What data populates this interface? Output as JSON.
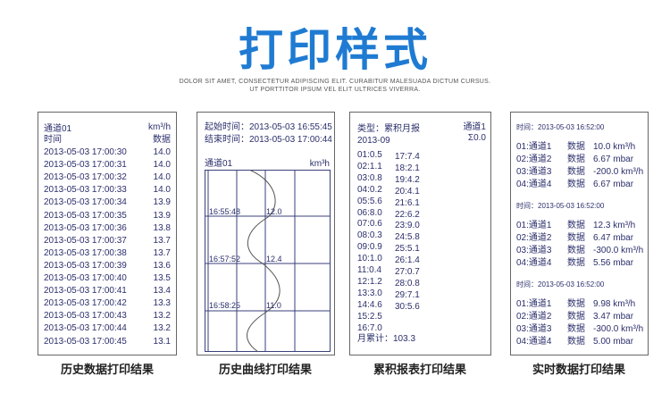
{
  "header": {
    "title": "打印样式",
    "subtitle_line1": "DOLOR SIT AMET, CONSECTETUR ADIPISCING ELIT. CURABITUR MALESUADA DICTUM CURSUS.",
    "subtitle_line2": "UT PORTTITOR IPSUM VEL ELIT ULTRICES VIVERRA."
  },
  "history": {
    "channel": "通道01",
    "unit": "km³/h",
    "time_label": "时间",
    "data_label": "数据",
    "rows": [
      [
        "2013-05-03  17:00:30",
        "14.0"
      ],
      [
        "2013-05-03  17:00:31",
        "14.0"
      ],
      [
        "2013-05-03  17:00:32",
        "14.0"
      ],
      [
        "2013-05-03  17:00:33",
        "14.0"
      ],
      [
        "2013-05-03  17:00:34",
        "13.9"
      ],
      [
        "2013-05-03  17:00:35",
        "13.9"
      ],
      [
        "2013-05-03  17:00:36",
        "13.8"
      ],
      [
        "2013-05-03  17:00:37",
        "13.7"
      ],
      [
        "2013-05-03  17:00:38",
        "13.7"
      ],
      [
        "2013-05-03  17:00:39",
        "13.6"
      ],
      [
        "2013-05-03  17:00:40",
        "13.5"
      ],
      [
        "2013-05-03  17:00:41",
        "13.4"
      ],
      [
        "2013-05-03  17:00:42",
        "13.3"
      ],
      [
        "2013-05-03  17:00:43",
        "13.2"
      ],
      [
        "2013-05-03  17:00:44",
        "13.2"
      ],
      [
        "2013-05-03  17:00:45",
        "13.1"
      ]
    ],
    "caption": "历史数据打印结果"
  },
  "curve": {
    "start": "起始时间：2013-05-03  16:55:45",
    "end": "结束时间：2013-05-03  17:00:44",
    "channel": "通道01",
    "unit": "km³h",
    "marks": [
      {
        "time": "16:55:48",
        "value": "12.0"
      },
      {
        "time": "16:57:52",
        "value": "12.4"
      },
      {
        "time": "16:58:25",
        "value": "11.0"
      }
    ],
    "caption": "历史曲线打印结果"
  },
  "cumulative": {
    "type": "类型：累积月报",
    "month": "2013-09",
    "channel": "通道1",
    "sum": "Σ0.0",
    "col1": [
      "01:0.5",
      "02:1.1",
      "03:0.8",
      "04:0.2",
      "05:5.6",
      "06:8.0",
      "07:0.6",
      "08:0.3",
      "09:0.9",
      "10:1.0",
      "11:0.4",
      "12:1.2",
      "13:3.0",
      "14:4.6",
      "15:2.5",
      "16:7.0"
    ],
    "col2": [
      "17:7.4",
      "18:2.1",
      "19:4.2",
      "20:4.1",
      "21:6.1",
      "22:6.2",
      "23:9.0",
      "24:5.8",
      "25:5.1",
      "26:1.4",
      "27:0.7",
      "28:0.8",
      "29:7.1",
      "30:5.6"
    ],
    "total": "月累计：103.3",
    "caption": "累积报表打印结果"
  },
  "realtime": {
    "groups": [
      {
        "time": "时间：2013-05-03 16:52:00",
        "rows": [
          [
            "01:通道1",
            "数据",
            "10.0 km³/h"
          ],
          [
            "02:通道2",
            "数据",
            "6.67 mbar"
          ],
          [
            "03:通道3",
            "数据",
            "-200.0 km³/h"
          ],
          [
            "04:通道4",
            "数据",
            "6.67 mbar"
          ]
        ]
      },
      {
        "time": "时间：2013-05-03 16:52:00",
        "rows": [
          [
            "01:通道1",
            "数据",
            "12.3 km³/h"
          ],
          [
            "02:通道2",
            "数据",
            "6.47 mbar"
          ],
          [
            "03:通道3",
            "数据",
            "-300.0 km³/h"
          ],
          [
            "04:通道4",
            "数据",
            "5.56 mbar"
          ]
        ]
      },
      {
        "time": "时间：2013-05-03 16:52:00",
        "rows": [
          [
            "01:通道1",
            "数据",
            "9.98 km³/h"
          ],
          [
            "02:通道2",
            "数据",
            "3.47 mbar"
          ],
          [
            "03:通道3",
            "数据",
            "-300.0 km³/h"
          ],
          [
            "04:通道4",
            "数据",
            "5.00 mbar"
          ]
        ]
      }
    ],
    "caption": "实时数据打印结果"
  }
}
